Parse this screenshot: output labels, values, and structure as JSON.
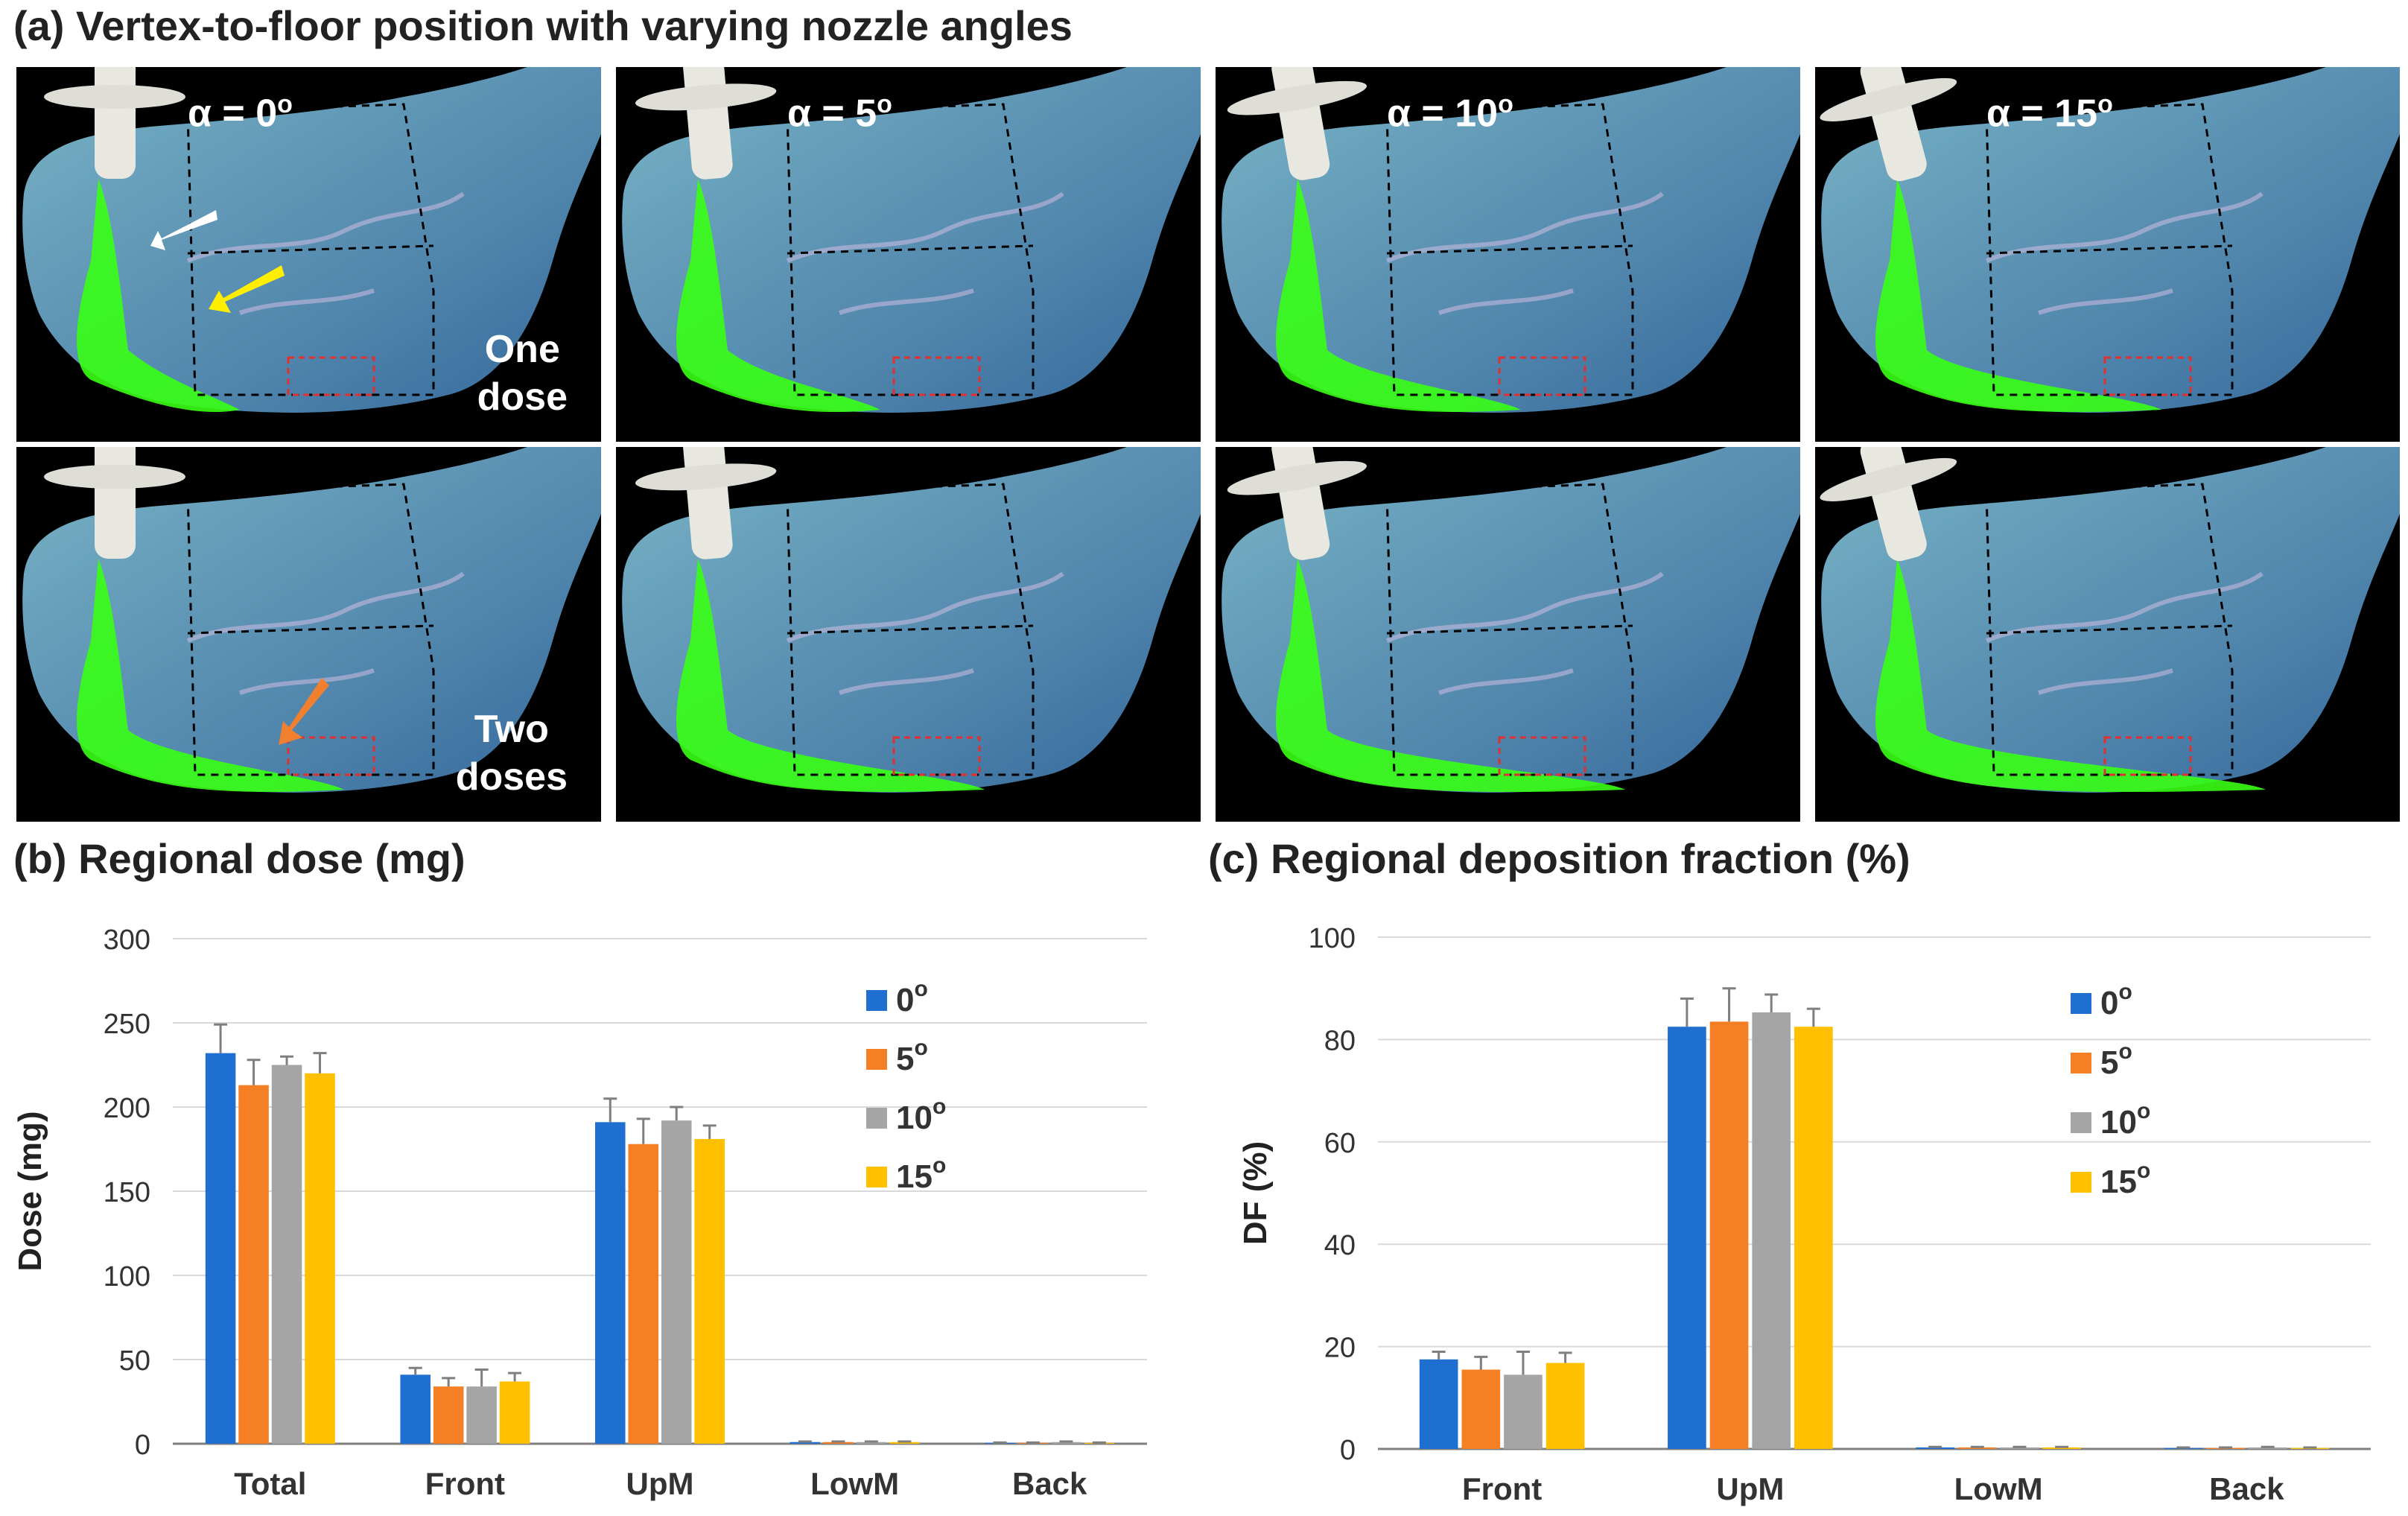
{
  "panel_a": {
    "title": "(a) Vertex-to-floor position with varying nozzle angles",
    "angles": [
      "α = 0",
      "α = 5",
      "α = 10",
      "α = 15"
    ],
    "degree_symbol": "o",
    "rows": [
      {
        "label_line1": "One",
        "label_line2": "dose"
      },
      {
        "label_line1": "Two",
        "label_line2": "doses"
      }
    ],
    "colors": {
      "deposit": "#39ff14",
      "cast": "#6fb6e8",
      "background": "#000000",
      "arrow_white": "#ffffff",
      "arrow_yellow": "#ffee00",
      "arrow_orange": "#f08030",
      "region_box": "#e03030"
    }
  },
  "chart_data": [
    {
      "type": "bar",
      "title": "(b) Regional dose (mg)",
      "xlabel": "",
      "ylabel": "Dose (mg)",
      "ylim": [
        0,
        300
      ],
      "yticks": [
        0,
        50,
        100,
        150,
        200,
        250,
        300
      ],
      "grid": true,
      "legend_position": "top-right",
      "categories": [
        "Total",
        "Front",
        "UpM",
        "LowM",
        "Back"
      ],
      "series": [
        {
          "name": "0",
          "sup": "o",
          "color": "#1f6fd1",
          "values": [
            232,
            41,
            191,
            1,
            0.5
          ],
          "errors": [
            17,
            4,
            14,
            0.3,
            0.2
          ]
        },
        {
          "name": "5",
          "sup": "o",
          "color": "#f57f25",
          "values": [
            213,
            34,
            178,
            1,
            0.5
          ],
          "errors": [
            15,
            5,
            15,
            0.3,
            0.2
          ]
        },
        {
          "name": "10",
          "sup": "o",
          "color": "#a5a5a5",
          "values": [
            225,
            34,
            192,
            1,
            1
          ],
          "errors": [
            5,
            10,
            8,
            0.3,
            0.3
          ]
        },
        {
          "name": "15",
          "sup": "o",
          "color": "#ffc000",
          "values": [
            220,
            37,
            181,
            1,
            0.5
          ],
          "errors": [
            12,
            5,
            8,
            0.3,
            0.2
          ]
        }
      ]
    },
    {
      "type": "bar",
      "title": "(c) Regional deposition fraction (%)",
      "xlabel": "",
      "ylabel": "DF (%)",
      "ylim": [
        0,
        100
      ],
      "yticks": [
        0,
        20,
        40,
        60,
        80,
        100
      ],
      "grid": true,
      "legend_position": "top-right",
      "categories": [
        "Front",
        "UpM",
        "LowM",
        "Back"
      ],
      "series": [
        {
          "name": "0",
          "sup": "o",
          "color": "#1f6fd1",
          "values": [
            17.5,
            82.5,
            0.3,
            0.2
          ],
          "errors": [
            1.5,
            5.5,
            0.1,
            0.1
          ]
        },
        {
          "name": "5",
          "sup": "o",
          "color": "#f57f25",
          "values": [
            15.5,
            83.5,
            0.3,
            0.2
          ],
          "errors": [
            2.5,
            6.5,
            0.1,
            0.1
          ]
        },
        {
          "name": "10",
          "sup": "o",
          "color": "#a5a5a5",
          "values": [
            14.5,
            85.3,
            0.3,
            0.3
          ],
          "errors": [
            4.5,
            3.5,
            0.1,
            0.1
          ]
        },
        {
          "name": "15",
          "sup": "o",
          "color": "#ffc000",
          "values": [
            16.8,
            82.5,
            0.3,
            0.2
          ],
          "errors": [
            2,
            3.5,
            0.1,
            0.1
          ]
        }
      ]
    }
  ]
}
